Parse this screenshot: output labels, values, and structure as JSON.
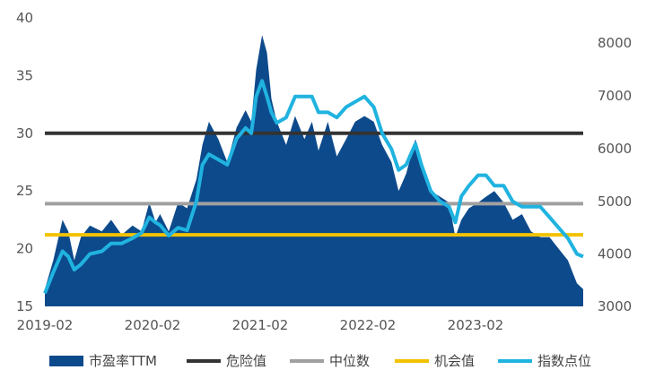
{
  "chart_data": {
    "type": "area",
    "title": "",
    "xlabel": "",
    "ylabel": "",
    "y2label": "",
    "x_ticks": [
      "2019-02",
      "2020-02",
      "2021-02",
      "2022-02",
      "2023-02"
    ],
    "y_left_ticks": [
      "40",
      "35",
      "30",
      "25",
      "20",
      "15"
    ],
    "y_right_ticks": [
      "8000",
      "7000",
      "6000",
      "5000",
      "4000",
      "3000"
    ],
    "ylim_left": [
      15,
      40
    ],
    "ylim_right": [
      3000,
      8500
    ],
    "x_range": [
      "2019-02-01",
      "2023-12-31"
    ],
    "grid": false,
    "legend_position": "bottom",
    "colors": {
      "pe": "#0d4a8c",
      "danger": "#333333",
      "median": "#a0a0a0",
      "opportunity": "#f2c200",
      "index": "#20b3e0"
    },
    "legend": [
      {
        "label": "市盈率TTM",
        "key": "pe",
        "shape": "box"
      },
      {
        "label": "危险值",
        "key": "danger",
        "shape": "line"
      },
      {
        "label": "中位数",
        "key": "median",
        "shape": "line"
      },
      {
        "label": "机会值",
        "key": "opportunity",
        "shape": "line"
      },
      {
        "label": "指数点位",
        "key": "index",
        "shape": "line"
      }
    ],
    "reference_lines": {
      "danger": 30,
      "median": 23.9,
      "opportunity": 21.2
    },
    "series": [
      {
        "name": "市盈率TTM",
        "axis": "left",
        "x": [
          "2019-02-01",
          "2019-03-01",
          "2019-04-01",
          "2019-04-20",
          "2019-05-10",
          "2019-06-01",
          "2019-07-01",
          "2019-08-10",
          "2019-09-10",
          "2019-10-15",
          "2019-11-20",
          "2019-12-20",
          "2020-01-15",
          "2020-02-05",
          "2020-02-20",
          "2020-03-20",
          "2020-04-20",
          "2020-05-20",
          "2020-06-20",
          "2020-07-10",
          "2020-08-01",
          "2020-09-01",
          "2020-10-01",
          "2020-11-01",
          "2020-12-01",
          "2020-12-20",
          "2021-01-05",
          "2021-01-25",
          "2021-02-10",
          "2021-02-25",
          "2021-03-15",
          "2021-04-15",
          "2021-05-15",
          "2021-06-15",
          "2021-07-10",
          "2021-08-01",
          "2021-09-01",
          "2021-10-01",
          "2021-11-01",
          "2021-12-01",
          "2022-01-01",
          "2022-02-01",
          "2022-03-01",
          "2022-04-01",
          "2022-04-25",
          "2022-05-20",
          "2022-06-20",
          "2022-07-10",
          "2022-08-10",
          "2022-09-10",
          "2022-10-10",
          "2022-10-31",
          "2022-11-20",
          "2022-12-15",
          "2023-01-15",
          "2023-02-10",
          "2023-03-10",
          "2023-04-10",
          "2023-05-10",
          "2023-06-10",
          "2023-07-10",
          "2023-08-10",
          "2023-09-10",
          "2023-10-10",
          "2023-11-10",
          "2023-12-10",
          "2023-12-31"
        ],
        "y": [
          16.5,
          19,
          22.5,
          21.5,
          19,
          21,
          22,
          21.5,
          22.5,
          21.2,
          22,
          21.5,
          24,
          22.3,
          23,
          21.5,
          24,
          23.5,
          26,
          29,
          31,
          29.5,
          27.5,
          30.5,
          32,
          31,
          35.5,
          38.5,
          37,
          33,
          31,
          29,
          31.5,
          29.5,
          31,
          28.5,
          31,
          28,
          29.5,
          31,
          31.5,
          31,
          29,
          27.5,
          25,
          26.5,
          29.5,
          27.5,
          25,
          24.5,
          24,
          21,
          22.5,
          23.5,
          24,
          24.5,
          25,
          24,
          22.5,
          23,
          21.5,
          21,
          21,
          20,
          19,
          17,
          16.5
        ]
      },
      {
        "name": "指数点位",
        "axis": "right",
        "x": [
          "2019-02-01",
          "2019-03-01",
          "2019-04-01",
          "2019-04-20",
          "2019-05-10",
          "2019-06-01",
          "2019-07-01",
          "2019-08-10",
          "2019-09-10",
          "2019-10-15",
          "2019-11-20",
          "2019-12-20",
          "2020-01-15",
          "2020-02-05",
          "2020-02-20",
          "2020-03-20",
          "2020-04-20",
          "2020-05-20",
          "2020-06-20",
          "2020-07-10",
          "2020-08-01",
          "2020-09-01",
          "2020-10-01",
          "2020-11-01",
          "2020-12-01",
          "2020-12-20",
          "2021-01-05",
          "2021-01-25",
          "2021-02-10",
          "2021-02-25",
          "2021-03-15",
          "2021-04-15",
          "2021-05-15",
          "2021-06-15",
          "2021-07-10",
          "2021-08-01",
          "2021-09-01",
          "2021-10-01",
          "2021-11-01",
          "2021-12-01",
          "2022-01-01",
          "2022-02-01",
          "2022-03-01",
          "2022-04-01",
          "2022-04-25",
          "2022-05-20",
          "2022-06-20",
          "2022-07-10",
          "2022-08-10",
          "2022-09-10",
          "2022-10-10",
          "2022-10-31",
          "2022-11-20",
          "2022-12-15",
          "2023-01-15",
          "2023-02-10",
          "2023-03-10",
          "2023-04-10",
          "2023-05-10",
          "2023-06-10",
          "2023-07-10",
          "2023-08-10",
          "2023-09-10",
          "2023-10-10",
          "2023-11-10",
          "2023-12-10",
          "2023-12-31"
        ],
        "y": [
          3250,
          3650,
          4050,
          3950,
          3700,
          3800,
          4000,
          4050,
          4200,
          4200,
          4300,
          4400,
          4700,
          4600,
          4550,
          4350,
          4500,
          4450,
          5000,
          5700,
          5900,
          5800,
          5700,
          6200,
          6400,
          6300,
          7000,
          7300,
          7000,
          6700,
          6500,
          6600,
          7000,
          7000,
          7000,
          6700,
          6700,
          6600,
          6800,
          6900,
          7000,
          6800,
          6300,
          6000,
          5600,
          5700,
          6100,
          5700,
          5200,
          5000,
          4900,
          4600,
          5100,
          5300,
          5500,
          5500,
          5300,
          5300,
          5000,
          4900,
          4900,
          4900,
          4700,
          4500,
          4300,
          4000,
          3950
        ]
      }
    ]
  }
}
